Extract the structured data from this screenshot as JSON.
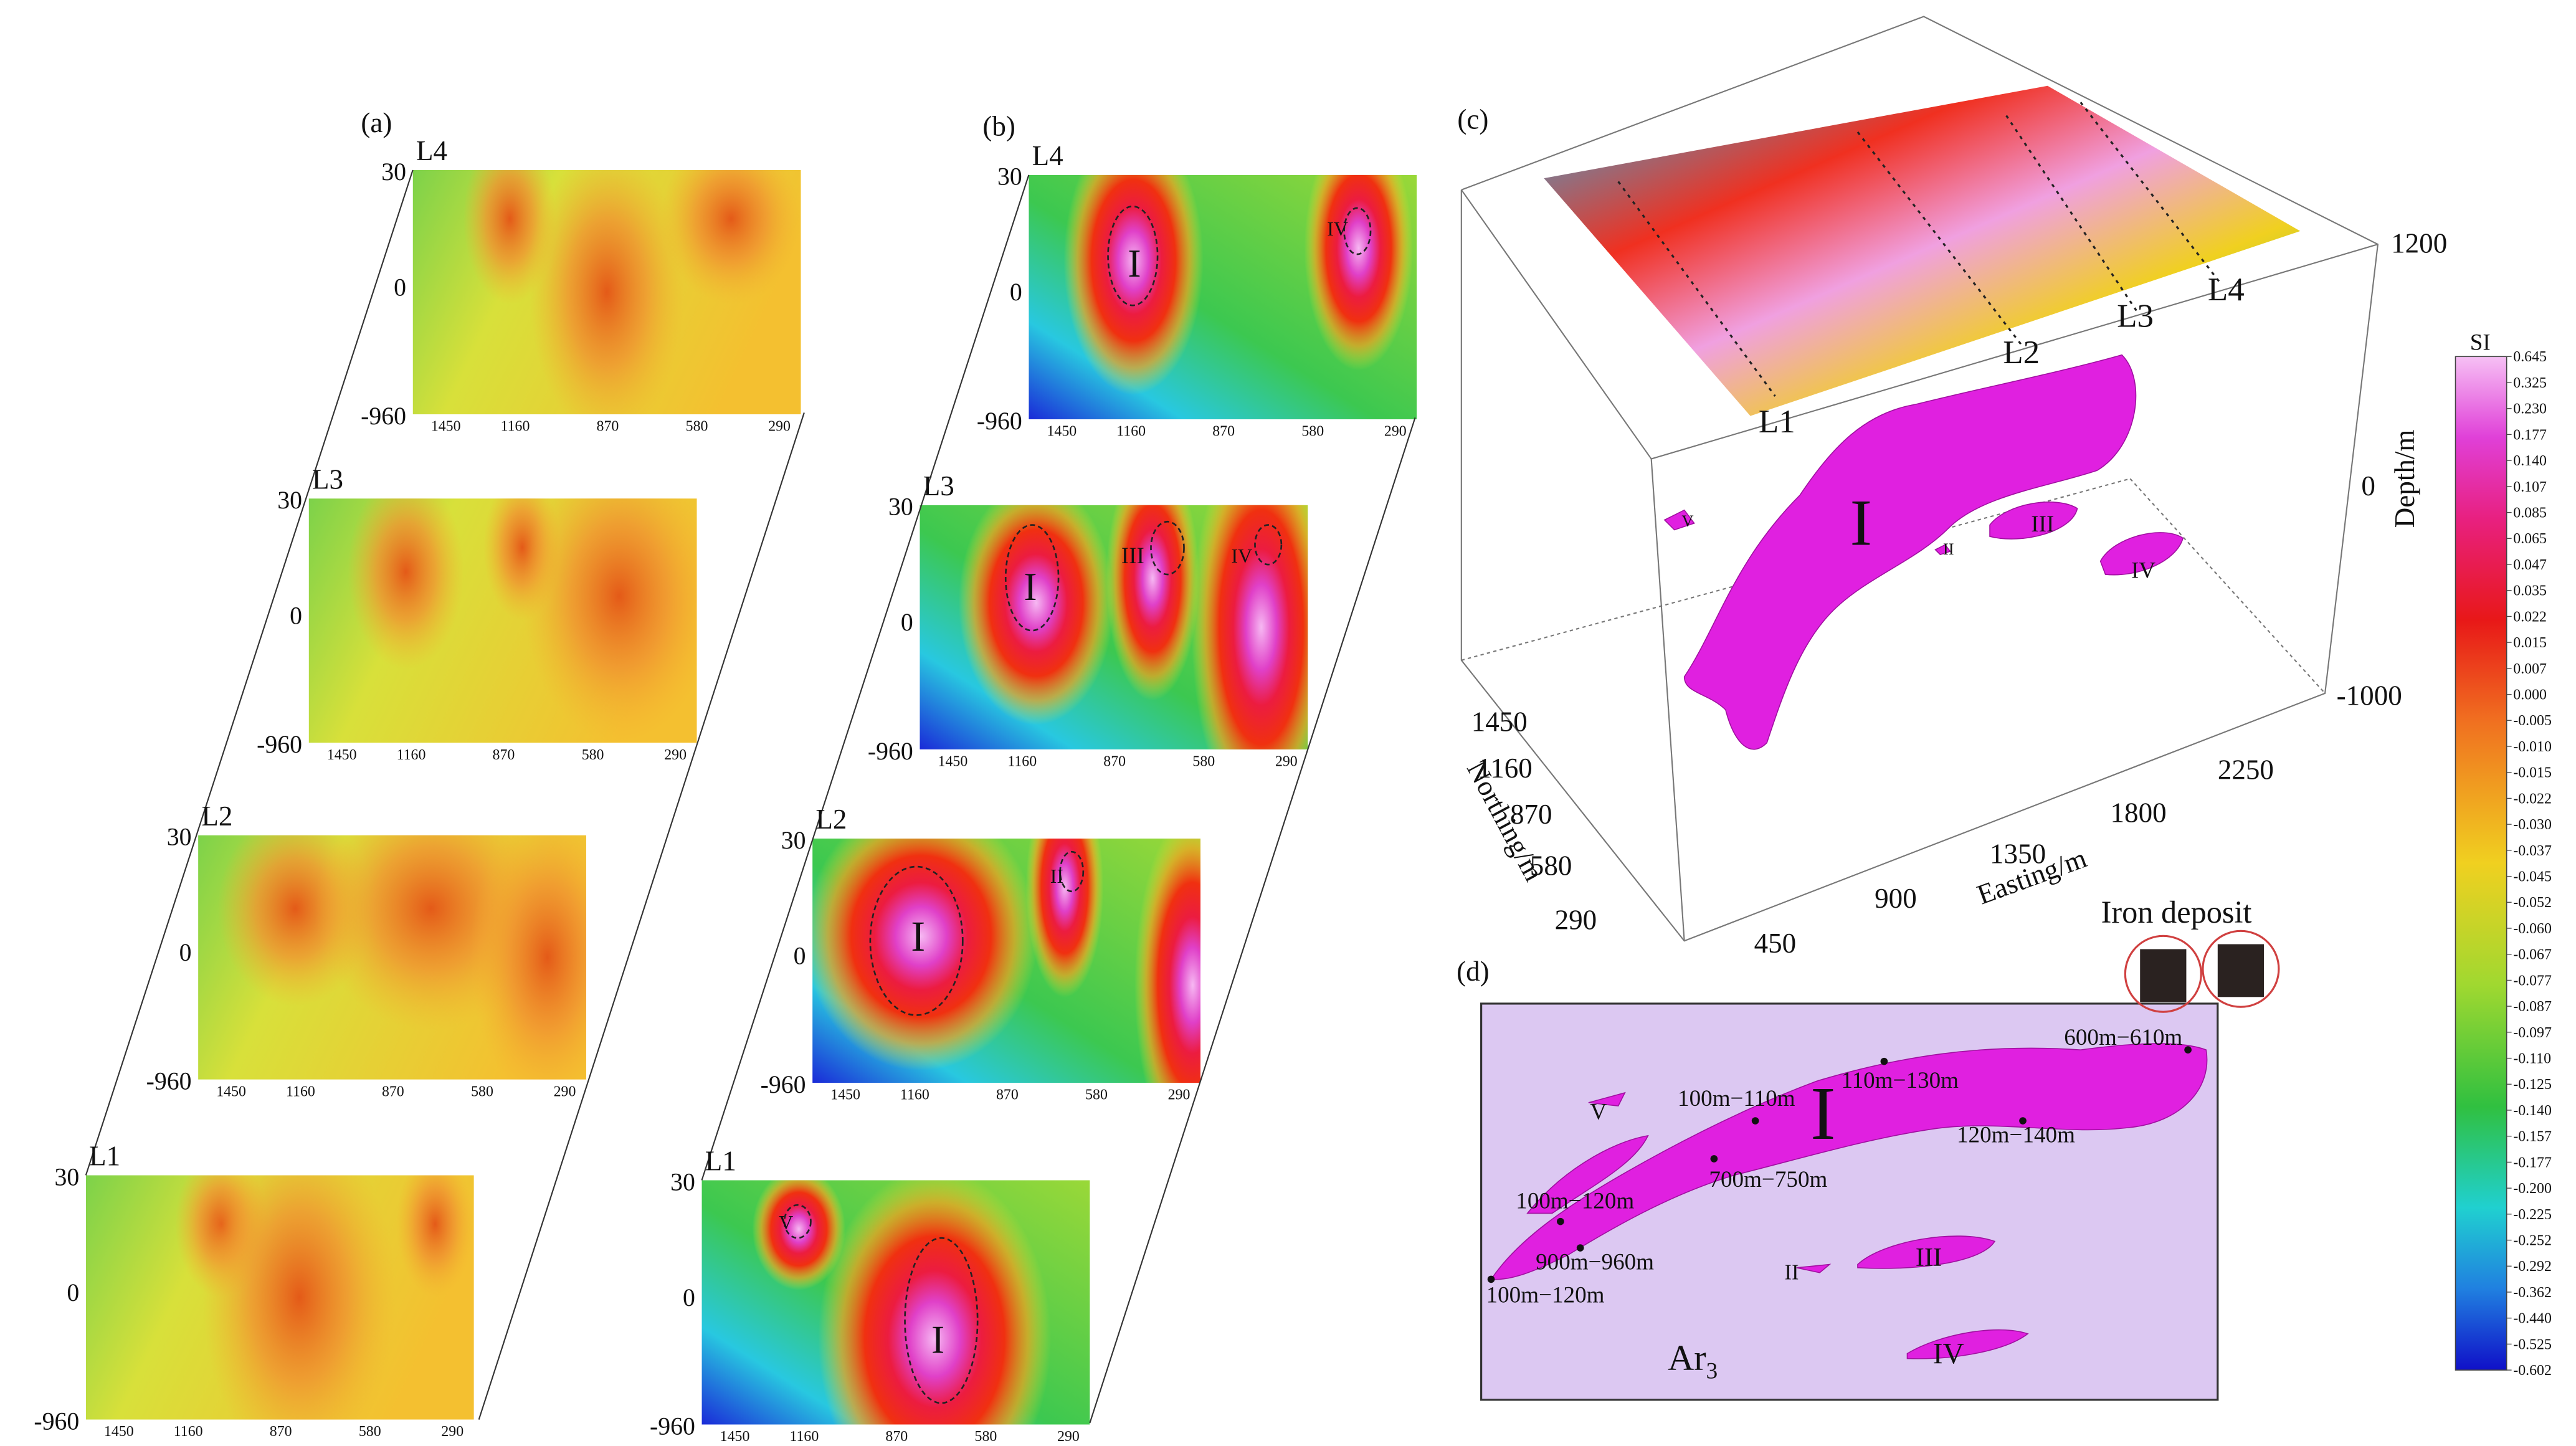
{
  "panel_a": {
    "label": "(a)",
    "sections": [
      {
        "name": "L4",
        "depth_ticks": [
          "30",
          "0",
          "-960"
        ],
        "x_ticks": [
          "1450",
          "1160",
          "870",
          "580",
          "290"
        ]
      },
      {
        "name": "L3",
        "depth_ticks": [
          "30",
          "0",
          "-960"
        ],
        "x_ticks": [
          "1450",
          "1160",
          "870",
          "580",
          "290"
        ]
      },
      {
        "name": "L2",
        "depth_ticks": [
          "30",
          "0",
          "-960"
        ],
        "x_ticks": [
          "1450",
          "1160",
          "870",
          "580",
          "290"
        ]
      },
      {
        "name": "L1",
        "depth_ticks": [
          "30",
          "0",
          "-960"
        ],
        "x_ticks": [
          "1450",
          "1160",
          "870",
          "580",
          "290"
        ]
      }
    ]
  },
  "panel_b": {
    "label": "(b)",
    "sections": [
      {
        "name": "L4",
        "depth_ticks": [
          "30",
          "0",
          "-960"
        ],
        "x_ticks": [
          "1450",
          "1160",
          "870",
          "580",
          "290"
        ],
        "zones": [
          "I",
          "IV"
        ]
      },
      {
        "name": "L3",
        "depth_ticks": [
          "30",
          "0",
          "-960"
        ],
        "x_ticks": [
          "1450",
          "1160",
          "870",
          "580",
          "290"
        ],
        "zones": [
          "I",
          "III",
          "IV"
        ]
      },
      {
        "name": "L2",
        "depth_ticks": [
          "30",
          "0",
          "-960"
        ],
        "x_ticks": [
          "1450",
          "1160",
          "870",
          "580",
          "290"
        ],
        "zones": [
          "I",
          "II"
        ]
      },
      {
        "name": "L1",
        "depth_ticks": [
          "30",
          "0",
          "-960"
        ],
        "x_ticks": [
          "1450",
          "1160",
          "870",
          "580",
          "290"
        ],
        "zones": [
          "V",
          "I"
        ]
      }
    ]
  },
  "panel_c": {
    "label": "(c)",
    "z_axis_title": "Depth/m",
    "z_ticks": [
      "1200",
      "0",
      "-1000"
    ],
    "y_axis_title": "Northing/m",
    "y_ticks": [
      "1450",
      "1160",
      "870",
      "580",
      "290"
    ],
    "x_axis_title": "Easting/m",
    "x_ticks": [
      "450",
      "900",
      "1350",
      "1800",
      "2250"
    ],
    "lines": [
      "L1",
      "L2",
      "L3",
      "L4"
    ],
    "bodies": [
      "I",
      "II",
      "III",
      "IV",
      "V"
    ]
  },
  "colorbar": {
    "title": "SI",
    "labels": [
      "0.645",
      "0.325",
      "0.230",
      "0.177",
      "0.140",
      "0.107",
      "0.085",
      "0.065",
      "0.047",
      "0.035",
      "0.022",
      "0.015",
      "0.007",
      "0.000",
      "-0.005",
      "-0.010",
      "-0.015",
      "-0.022",
      "-0.030",
      "-0.037",
      "-0.045",
      "-0.052",
      "-0.060",
      "-0.067",
      "-0.077",
      "-0.087",
      "-0.097",
      "-0.110",
      "-0.125",
      "-0.140",
      "-0.157",
      "-0.177",
      "-0.200",
      "-0.225",
      "-0.252",
      "-0.292",
      "-0.362",
      "-0.440",
      "-0.525",
      "-0.602"
    ]
  },
  "panel_d": {
    "label": "(d)",
    "legend": "Iron deposit",
    "bodies": [
      "I",
      "II",
      "III",
      "IV",
      "V"
    ],
    "depth_labels": [
      "600m−610m",
      "100m−110m",
      "110m−130m",
      "120m−140m",
      "700m−750m",
      "100m−120m",
      "900m−960m",
      "100m−120m"
    ],
    "unit": {
      "text": "Ar",
      "subscript": "3"
    }
  }
}
